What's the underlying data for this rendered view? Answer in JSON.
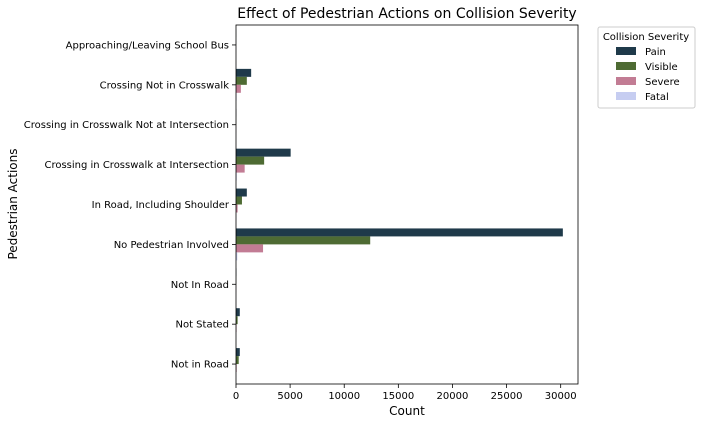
{
  "chart_data": {
    "type": "bar",
    "orientation": "horizontal",
    "title": "Effect of Pedestrian Actions on Collision Severity",
    "xlabel": "Count",
    "ylabel": "Pedestrian Actions",
    "xlim": [
      0,
      31600
    ],
    "xticks": [
      0,
      5000,
      10000,
      15000,
      20000,
      25000,
      30000
    ],
    "grid": false,
    "categories": [
      "Approaching/Leaving School Bus",
      "Crossing Not in Crosswalk",
      "Crossing in Crosswalk Not at Intersection",
      "Crossing in Crosswalk at Intersection",
      "In Road, Including Shoulder",
      "No Pedestrian Involved",
      "Not In Road",
      "Not Stated",
      "Not in Road"
    ],
    "series": [
      {
        "name": "Pain",
        "color": "#1f3a4a",
        "values": [
          10,
          1400,
          20,
          5050,
          1000,
          30200,
          30,
          350,
          350
        ]
      },
      {
        "name": "Visible",
        "color": "#4e6b33",
        "values": [
          5,
          1000,
          15,
          2600,
          550,
          12400,
          20,
          150,
          250
        ]
      },
      {
        "name": "Severe",
        "color": "#c27c94",
        "values": [
          3,
          450,
          10,
          800,
          150,
          2500,
          10,
          50,
          60
        ]
      },
      {
        "name": "Fatal",
        "color": "#c6cdf1",
        "values": [
          1,
          50,
          2,
          60,
          20,
          120,
          2,
          5,
          5
        ]
      }
    ],
    "legend": {
      "title": "Collision Severity",
      "placement": "outside-upper-right"
    }
  }
}
